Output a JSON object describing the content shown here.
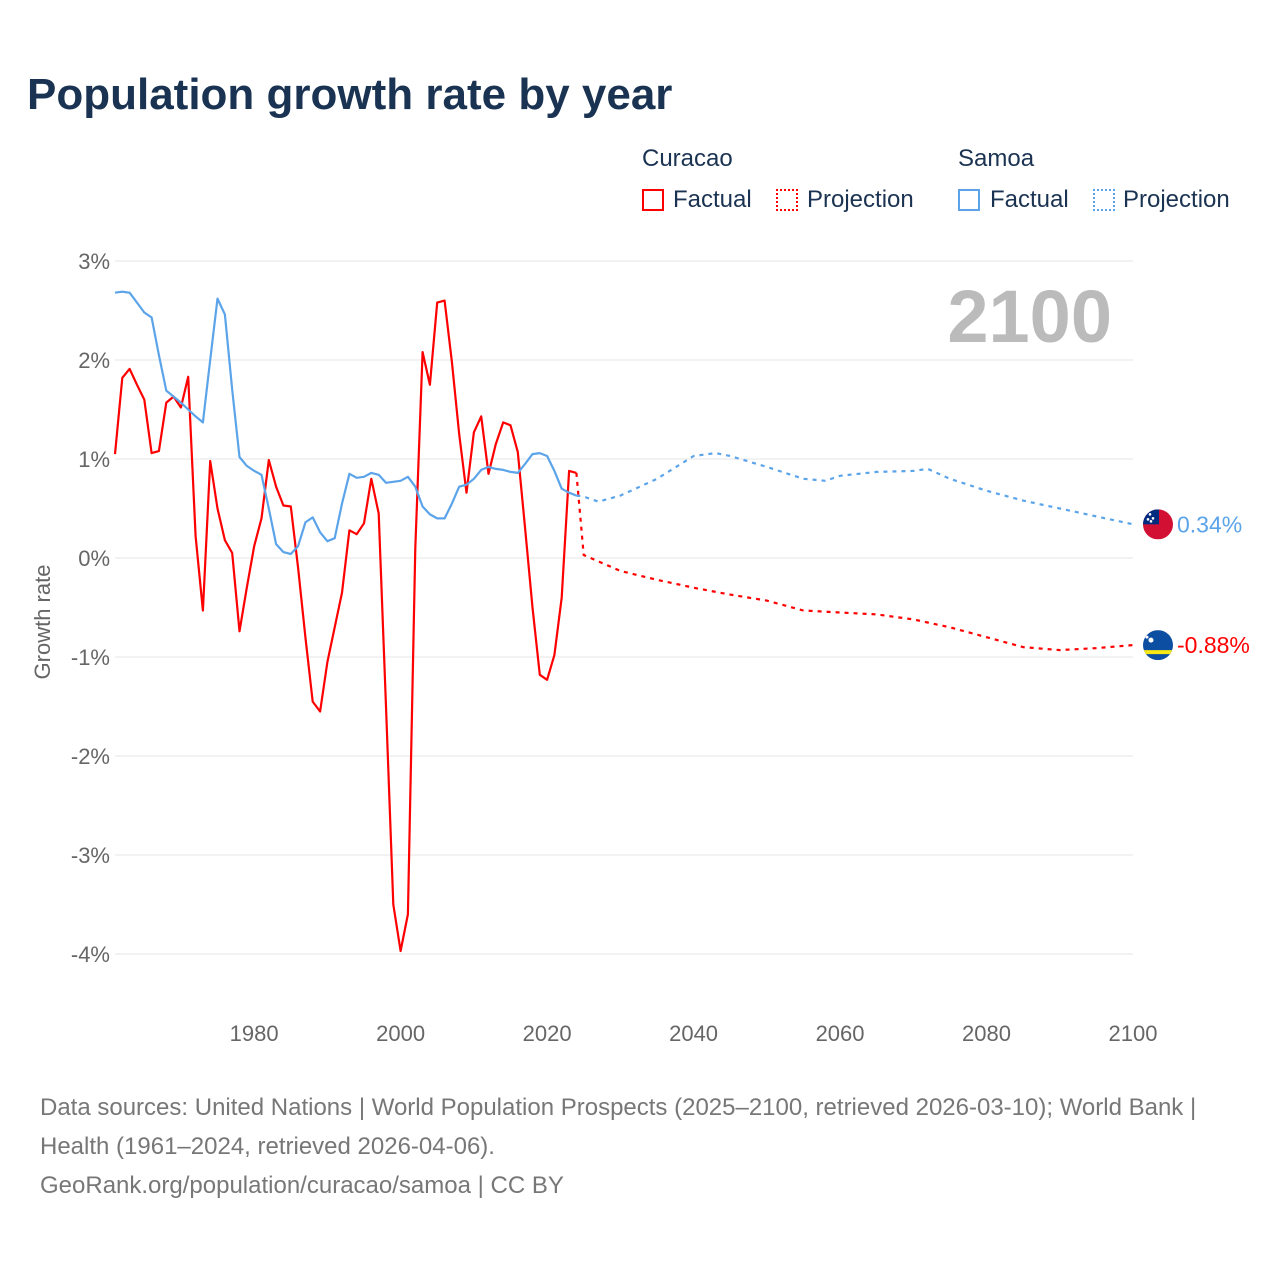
{
  "title": "Population growth rate by year",
  "legend": {
    "groups": [
      {
        "name": "Curacao",
        "factual": "Factual",
        "projection": "Projection",
        "color": "#ff0000"
      },
      {
        "name": "Samoa",
        "factual": "Factual",
        "projection": "Projection",
        "color": "#5ba4ea"
      }
    ]
  },
  "year_label": "2100",
  "source_line1": "Data sources: United Nations | World Population Prospects (2025–2100, retrieved 2026-03-10); World Bank | Health (1961–2024, retrieved 2026-04-06).",
  "source_line2": "GeoRank.org/population/curacao/samoa | CC BY",
  "chart_data": {
    "type": "line",
    "title": "Population growth rate by year",
    "ylabel": "Growth rate",
    "xlabel": "",
    "xlim": [
      1961,
      2100
    ],
    "ylim": [
      -4,
      3
    ],
    "xticks": [
      1980,
      2000,
      2020,
      2040,
      2060,
      2080,
      2100
    ],
    "yticks": [
      3,
      2,
      1,
      0,
      -1,
      -2,
      -3,
      -4
    ],
    "ytick_labels": [
      "3%",
      "2%",
      "1%",
      "0%",
      "-1%",
      "-2%",
      "-3%",
      "-4%"
    ],
    "grid": true,
    "legend_position": "top-right",
    "series": [
      {
        "name": "Curacao",
        "kind": "factual",
        "color": "#ff0000",
        "start": 1961,
        "values": [
          1.05,
          1.82,
          1.91,
          1.75,
          1.6,
          1.06,
          1.08,
          1.57,
          1.63,
          1.52,
          1.83,
          0.22,
          -0.53,
          0.98,
          0.5,
          0.18,
          0.05,
          -0.74,
          -0.3,
          0.12,
          0.4,
          0.99,
          0.72,
          0.53,
          0.52,
          -0.1,
          -0.8,
          -1.45,
          -1.55,
          -1.05,
          -0.7,
          -0.35,
          0.28,
          0.24,
          0.35,
          0.8,
          0.45,
          -1.5,
          -3.5,
          -3.97,
          -3.6,
          0.1,
          2.08,
          1.75,
          2.58,
          2.6,
          1.98,
          1.25,
          0.66,
          1.27,
          1.43,
          0.85,
          1.15,
          1.37,
          1.34,
          1.07,
          0.3,
          -0.5,
          -1.18,
          -1.23,
          -0.98,
          -0.4,
          0.88,
          0.86
        ]
      },
      {
        "name": "Curacao",
        "kind": "projection",
        "color": "#ff0000",
        "x": [
          2024,
          2025,
          2030,
          2035,
          2040,
          2045,
          2050,
          2055,
          2060,
          2065,
          2070,
          2075,
          2080,
          2085,
          2090,
          2095,
          2100
        ],
        "values": [
          0.86,
          0.03,
          -0.13,
          -0.22,
          -0.3,
          -0.37,
          -0.43,
          -0.53,
          -0.55,
          -0.57,
          -0.62,
          -0.7,
          -0.8,
          -0.9,
          -0.93,
          -0.91,
          -0.88
        ]
      },
      {
        "name": "Samoa",
        "kind": "factual",
        "color": "#5ba4ea",
        "start": 1961,
        "values": [
          2.68,
          2.69,
          2.68,
          2.58,
          2.48,
          2.43,
          2.05,
          1.69,
          1.63,
          1.57,
          1.5,
          1.43,
          1.37,
          2.0,
          2.62,
          2.46,
          1.7,
          1.02,
          0.93,
          0.88,
          0.84,
          0.5,
          0.14,
          0.06,
          0.04,
          0.12,
          0.36,
          0.41,
          0.26,
          0.17,
          0.2,
          0.55,
          0.85,
          0.81,
          0.82,
          0.86,
          0.84,
          0.76,
          0.77,
          0.78,
          0.82,
          0.72,
          0.52,
          0.44,
          0.4,
          0.4,
          0.55,
          0.72,
          0.74,
          0.8,
          0.89,
          0.92,
          0.9,
          0.89,
          0.87,
          0.86,
          0.95,
          1.05,
          1.06,
          1.03,
          0.88,
          0.7,
          0.66,
          0.63
        ]
      },
      {
        "name": "Samoa",
        "kind": "projection",
        "color": "#5ba4ea",
        "x": [
          2024,
          2025,
          2027,
          2030,
          2035,
          2040,
          2043,
          2045,
          2050,
          2055,
          2058,
          2060,
          2065,
          2070,
          2072,
          2075,
          2080,
          2085,
          2090,
          2095,
          2100
        ],
        "values": [
          0.63,
          0.62,
          0.57,
          0.63,
          0.8,
          1.03,
          1.06,
          1.03,
          0.92,
          0.8,
          0.78,
          0.83,
          0.87,
          0.88,
          0.9,
          0.8,
          0.68,
          0.58,
          0.5,
          0.42,
          0.34
        ]
      }
    ],
    "end_labels": [
      {
        "name": "Samoa",
        "text": "0.34%",
        "color": "#5ba4ea"
      },
      {
        "name": "Curacao",
        "text": "-0.88%",
        "color": "#ff0000"
      }
    ]
  }
}
